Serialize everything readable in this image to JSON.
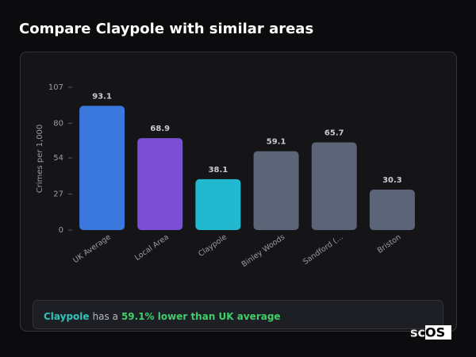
{
  "chart_data": {
    "type": "bar",
    "title": "Compare Claypole with similar areas",
    "y_label": "Crimes per 1,000",
    "categories": [
      "UK Average",
      "Local Area",
      "Claypole",
      "Binley Woods",
      "Sandford (...",
      "Briston"
    ],
    "values": [
      93.1,
      68.9,
      38.1,
      59.1,
      65.7,
      30.3
    ],
    "colors": [
      "#3a78dd",
      "#7a4fd5",
      "#22b8cf",
      "#5b6577",
      "#5b6577",
      "#5b6577"
    ],
    "ylim": [
      0,
      107
    ],
    "yticks": [
      0,
      27,
      54,
      80,
      107
    ]
  },
  "summary": {
    "area": "Claypole",
    "text": "has a",
    "highlight": "59.1% lower than UK average"
  },
  "logo": "scOS"
}
